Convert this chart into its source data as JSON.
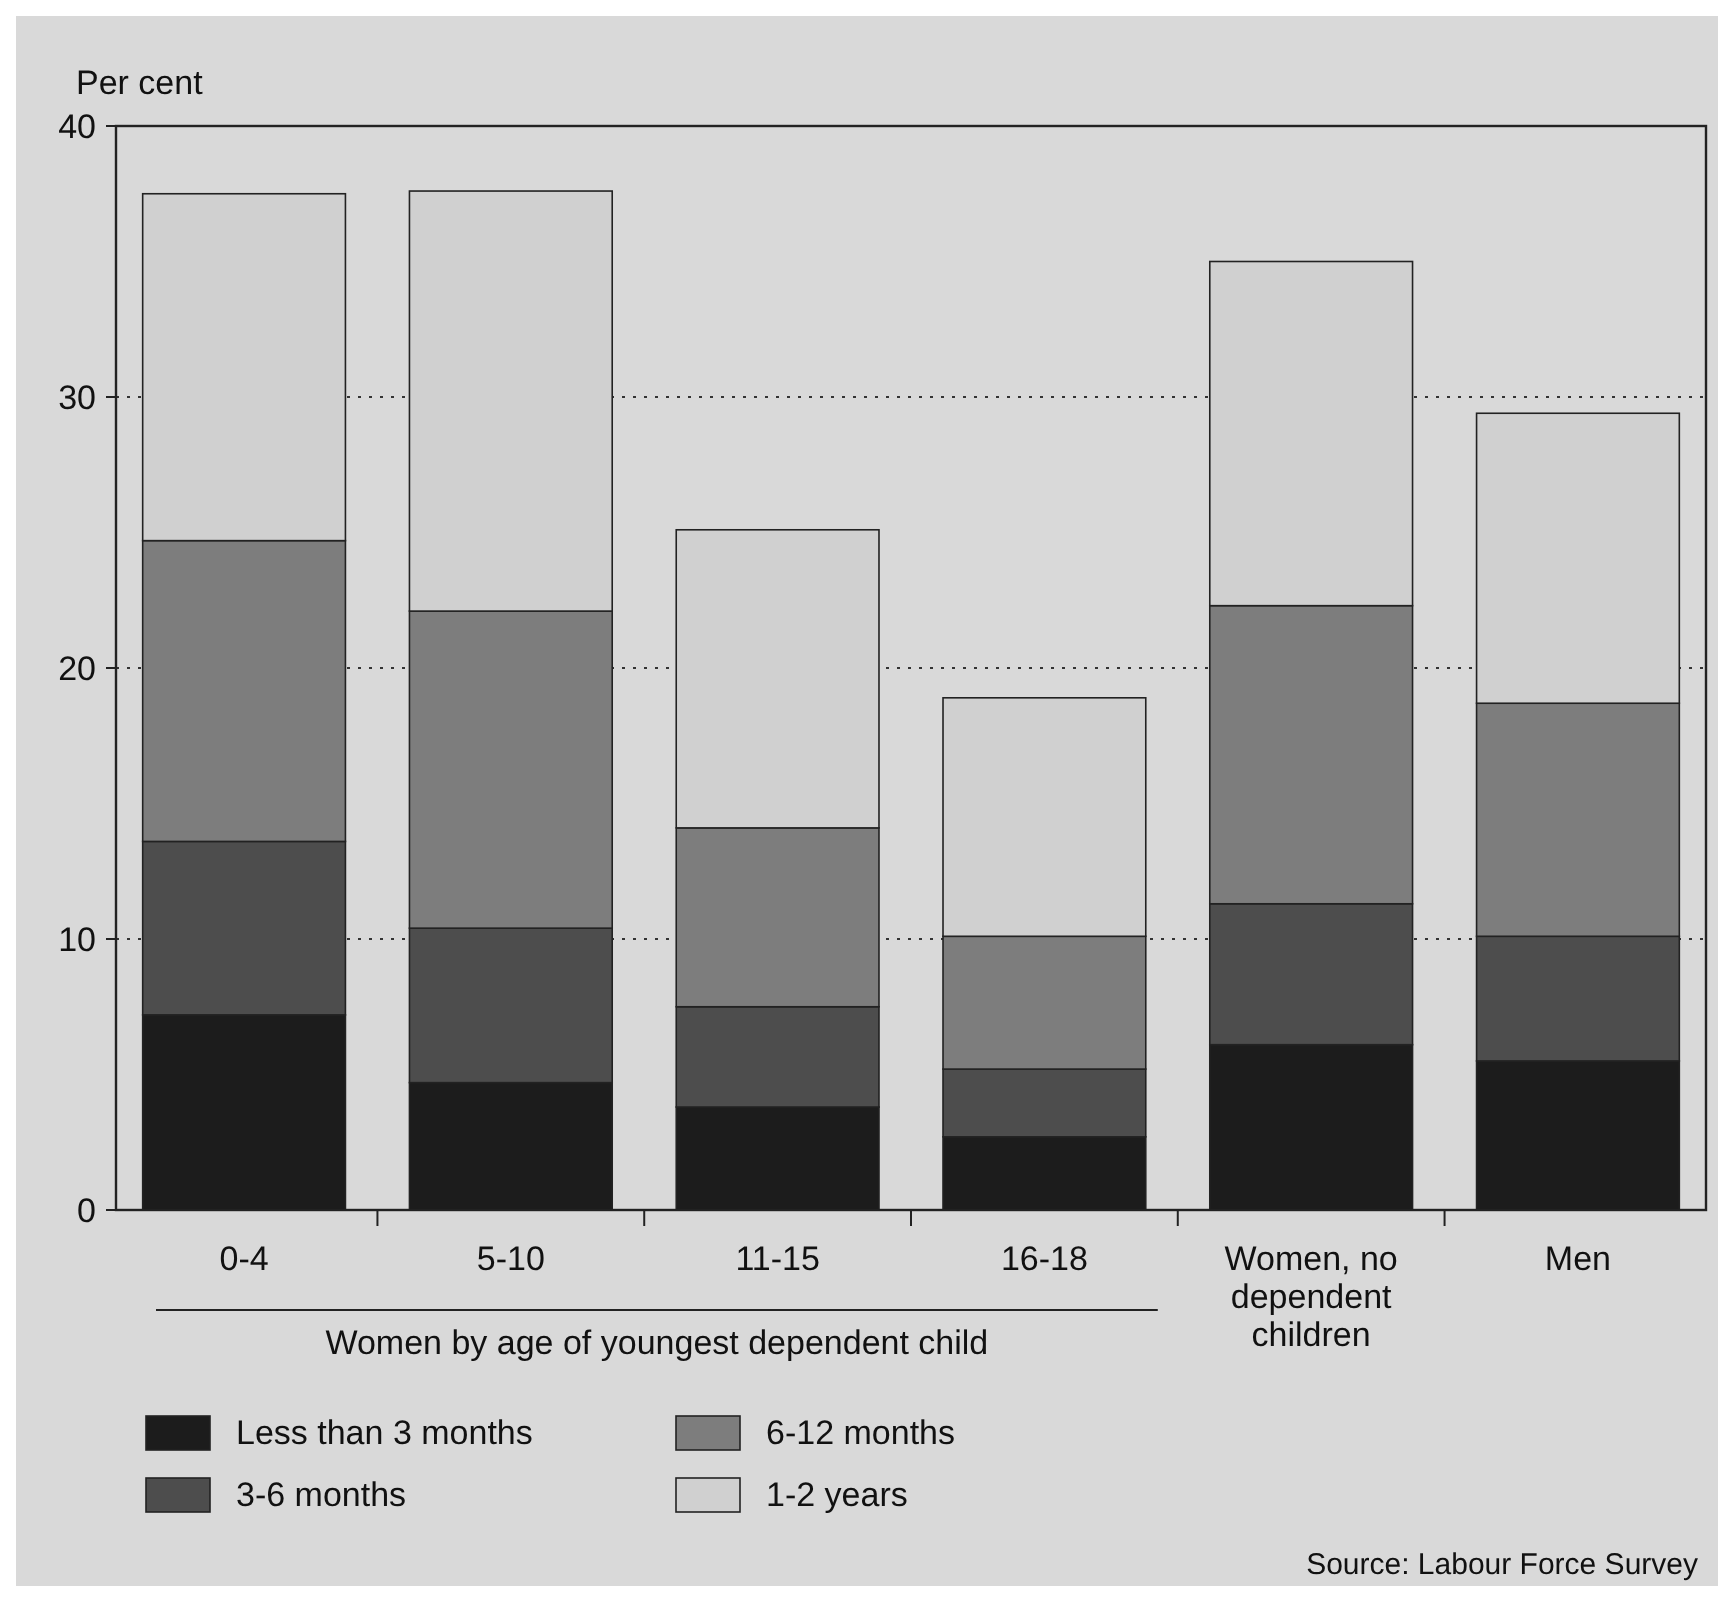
{
  "chart_data": {
    "type": "bar",
    "stacked": true,
    "ylabel": "Per cent",
    "xlabel": "Women by age of youngest dependent child",
    "categories": [
      "0-4",
      "5-10",
      "11-15",
      "16-18",
      "Women, no dependent children",
      "Men"
    ],
    "series": [
      {
        "name": "Less than 3 months",
        "color": "#1c1c1c",
        "values": [
          7.2,
          4.7,
          3.8,
          2.7,
          6.1,
          5.5
        ]
      },
      {
        "name": "3-6 months",
        "color": "#4d4d4d",
        "values": [
          6.4,
          5.7,
          3.7,
          2.5,
          5.2,
          4.6
        ]
      },
      {
        "name": "6-12 months",
        "color": "#7d7d7d",
        "values": [
          11.1,
          11.7,
          6.6,
          4.9,
          11.0,
          8.6
        ]
      },
      {
        "name": "1-2 years",
        "color": "#d0d0d0",
        "values": [
          12.8,
          15.5,
          11.0,
          8.8,
          12.7,
          10.7
        ]
      }
    ],
    "ylim": [
      0,
      40
    ],
    "yticks": [
      0,
      10,
      20,
      30,
      40
    ],
    "grid": "y",
    "legend": "bottom left",
    "annotations": [
      "Source: Labour Force Survey"
    ]
  }
}
